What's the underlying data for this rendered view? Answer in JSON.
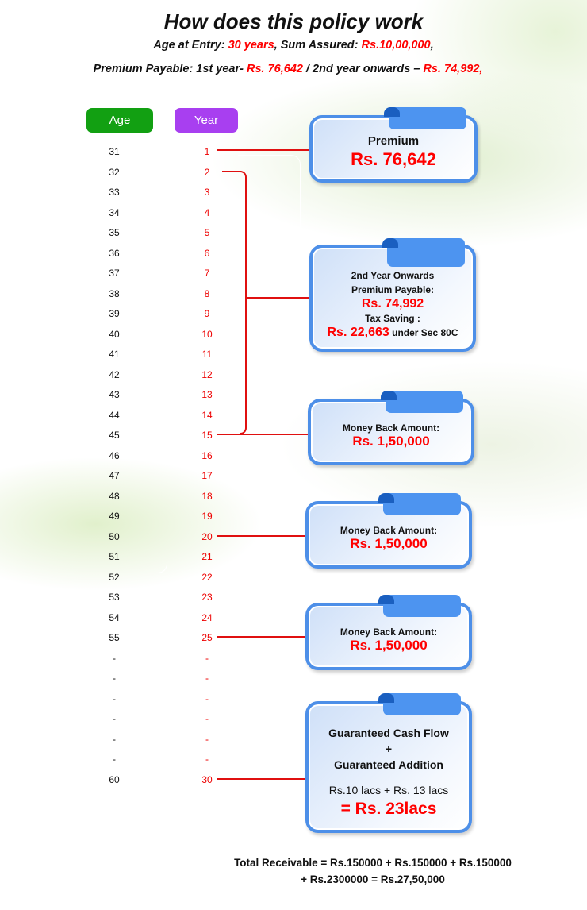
{
  "title": "How does this policy work",
  "line1": {
    "age_label": "Age at Entry: ",
    "age": "30 years",
    "sum_label": ", Sum Assured: ",
    "sum": "Rs.10,00,000",
    "end": ","
  },
  "line2": {
    "label": "Premium Payable:  1st year- ",
    "first": "Rs. 76,642",
    "mid": " / 2nd year onwards – ",
    "second": "Rs. 74,992,"
  },
  "headers": {
    "age": "Age",
    "year": "Year",
    "age_color": "#12a012",
    "year_color": "#a83ff0"
  },
  "ages": [
    "31",
    "32",
    "33",
    "34",
    "35",
    "36",
    "37",
    "38",
    "39",
    "40",
    "41",
    "42",
    "43",
    "44",
    "45",
    "46",
    "47",
    "48",
    "49",
    "50",
    "51",
    "52",
    "53",
    "54",
    "55",
    "-",
    "-",
    "-",
    "-",
    "-",
    "-",
    "60"
  ],
  "years": [
    "1",
    "2",
    "3",
    "4",
    "5",
    "6",
    "7",
    "8",
    "9",
    "10",
    "11",
    "12",
    "13",
    "14",
    "15",
    "16",
    "17",
    "18",
    "19",
    "20",
    "21",
    "22",
    "23",
    "24",
    "25",
    "-",
    "-",
    "-",
    "-",
    "-",
    "-",
    "30"
  ],
  "boxes": {
    "premium": {
      "label": "Premium",
      "amount": "Rs. 76,642"
    },
    "onwards": {
      "l1": "2nd Year Onwards",
      "l2": "Premium Payable:",
      "amount": "Rs. 74,992",
      "l3": "Tax Saving :",
      "tax": "Rs. 22,663",
      "tax_suffix": " under Sec 80C"
    },
    "mb1": {
      "label": "Money Back Amount:",
      "amount": "Rs. 1,50,000"
    },
    "mb2": {
      "label": "Money Back Amount:",
      "amount": "Rs. 1,50,000"
    },
    "mb3": {
      "label": "Money Back Amount:",
      "amount": "Rs. 1,50,000"
    },
    "final": {
      "l1": "Guaranteed Cash Flow",
      "plus": "+",
      "l2": "Guaranteed Addition",
      "calc": "Rs.10 lacs + Rs. 13 lacs",
      "total": "= Rs. 23lacs"
    }
  },
  "footer": {
    "l1": "Total Receivable = Rs.150000 + Rs.150000 + Rs.150000",
    "l2": "+ Rs.2300000 = Rs.27,50,000"
  }
}
